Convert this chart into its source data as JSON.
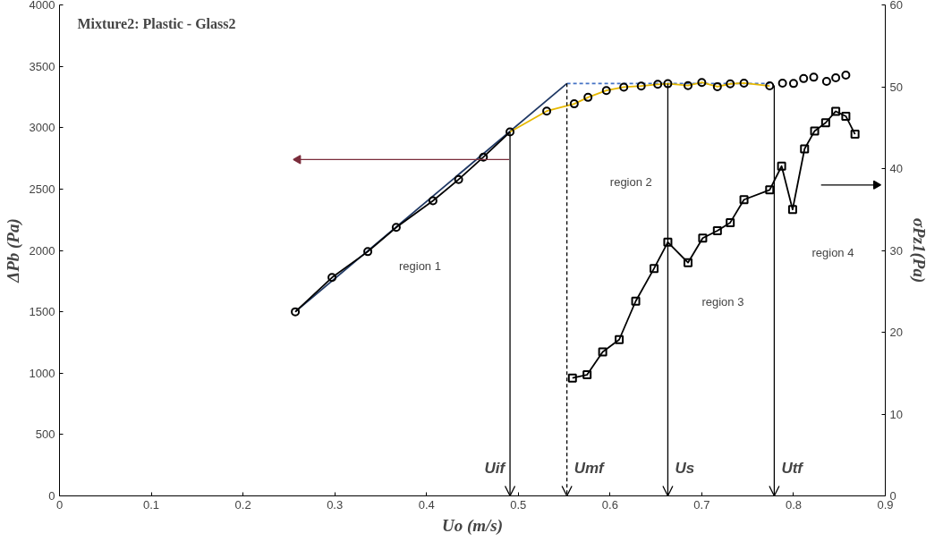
{
  "chart_data": {
    "type": "line",
    "title": "Mixture2: Plastic - Glass2",
    "xlabel": "Uo (m/s)",
    "ylabel": "ΔPb (Pa)",
    "y2label": "σPz1(Pa)",
    "xlim": [
      0,
      0.9
    ],
    "xticks": [
      0,
      0.1,
      0.2,
      0.3,
      0.4,
      0.5,
      0.6,
      0.7,
      0.8,
      0.9
    ],
    "ylim": [
      0,
      4000
    ],
    "yticks": [
      0,
      500,
      1000,
      1500,
      2000,
      2500,
      3000,
      3500,
      4000
    ],
    "y2lim": [
      0,
      60
    ],
    "y2ticks": [
      0,
      10,
      20,
      30,
      40,
      50,
      60
    ],
    "grid": false,
    "series": [
      {
        "color": "#1f3864",
        "line_style": "solid",
        "marker": "none",
        "x": [
          0.257,
          0.553
        ],
        "values": [
          1500,
          3360
        ]
      },
      {
        "color": "#4472c4",
        "line_style": "dashed",
        "marker": "none",
        "x": [
          0.553,
          0.774
        ],
        "values": [
          3360,
          3360
        ]
      },
      {
        "color": "#e6b800",
        "line_style": "solid",
        "marker": "none",
        "x": [
          0.491,
          0.531,
          0.561,
          0.576,
          0.596,
          0.615,
          0.634,
          0.652,
          0.663,
          0.685,
          0.7,
          0.717,
          0.731,
          0.746,
          0.774
        ],
        "values": [
          2965,
          3135,
          3194,
          3247,
          3303,
          3330,
          3339,
          3353,
          3358,
          3343,
          3368,
          3334,
          3357,
          3363,
          3340
        ]
      },
      {
        "color": "#000000",
        "line_style": "solid",
        "marker": "circle",
        "x": [
          0.257,
          0.297,
          0.336,
          0.367,
          0.407,
          0.435,
          0.462,
          0.491
        ],
        "values": [
          1500,
          1779,
          1990,
          2187,
          2404,
          2578,
          2760,
          2965
        ]
      },
      {
        "type": "scatter",
        "color": "#000000",
        "marker": "circle",
        "x": [
          0.531,
          0.561,
          0.576,
          0.596,
          0.615,
          0.634,
          0.652,
          0.663,
          0.685,
          0.7,
          0.717,
          0.731,
          0.746,
          0.774,
          0.788,
          0.8,
          0.811,
          0.822,
          0.836,
          0.846,
          0.857
        ],
        "values": [
          3135,
          3194,
          3247,
          3303,
          3330,
          3339,
          3353,
          3358,
          3343,
          3368,
          3334,
          3357,
          3363,
          3340,
          3363,
          3360,
          3400,
          3411,
          3377,
          3406,
          3428
        ]
      },
      {
        "color": "#000000",
        "line_style": "solid",
        "marker": "square",
        "axis": "y2",
        "x": [
          0.559,
          0.575,
          0.592,
          0.61,
          0.628,
          0.648,
          0.663,
          0.685,
          0.701,
          0.717,
          0.731,
          0.746,
          0.774,
          0.787,
          0.799,
          0.812,
          0.823,
          0.835,
          0.846,
          0.857,
          0.867
        ],
        "values": [
          14.4,
          14.8,
          17.6,
          19.1,
          23.8,
          27.8,
          31.0,
          28.5,
          31.5,
          32.4,
          33.4,
          36.2,
          37.4,
          40.3,
          35.0,
          42.4,
          44.6,
          45.6,
          47.0,
          46.4,
          44.2
        ]
      },
      {
        "color": "#000000",
        "line_style": "solid",
        "marker": "none",
        "x": [
          0.491,
          0.491
        ],
        "values": [
          2965,
          0
        ]
      },
      {
        "color": "#000000",
        "line_style": "dashed",
        "marker": "none",
        "x": [
          0.553,
          0.553
        ],
        "values": [
          3360,
          0
        ]
      },
      {
        "color": "#000000",
        "line_style": "solid",
        "marker": "none",
        "x": [
          0.663,
          0.663
        ],
        "values": [
          3358,
          0
        ]
      },
      {
        "color": "#000000",
        "line_style": "solid",
        "marker": "none",
        "x": [
          0.779,
          0.779
        ],
        "values": [
          3345,
          0
        ]
      },
      {
        "color": "#7b2c3b",
        "line_style": "solid",
        "marker": "triangle",
        "x": [
          0.49,
          0.26
        ],
        "values": [
          2740,
          2740
        ]
      },
      {
        "color": "#000000",
        "line_style": "solid",
        "marker": "triangle",
        "axis": "y2",
        "x": [
          0.83,
          0.89
        ],
        "values": [
          38,
          38
        ]
      }
    ],
    "annotations": [
      "region 1",
      "region 2",
      "region 3",
      "region 4",
      {
        "text": "Uif",
        "x": 0.491,
        "y": 0
      },
      {
        "text": "Umf",
        "x": 0.553,
        "y": 0
      },
      {
        "text": "Us",
        "x": 0.663,
        "y": 0
      },
      {
        "text": "Utf",
        "x": 0.779,
        "y": 0
      }
    ]
  }
}
